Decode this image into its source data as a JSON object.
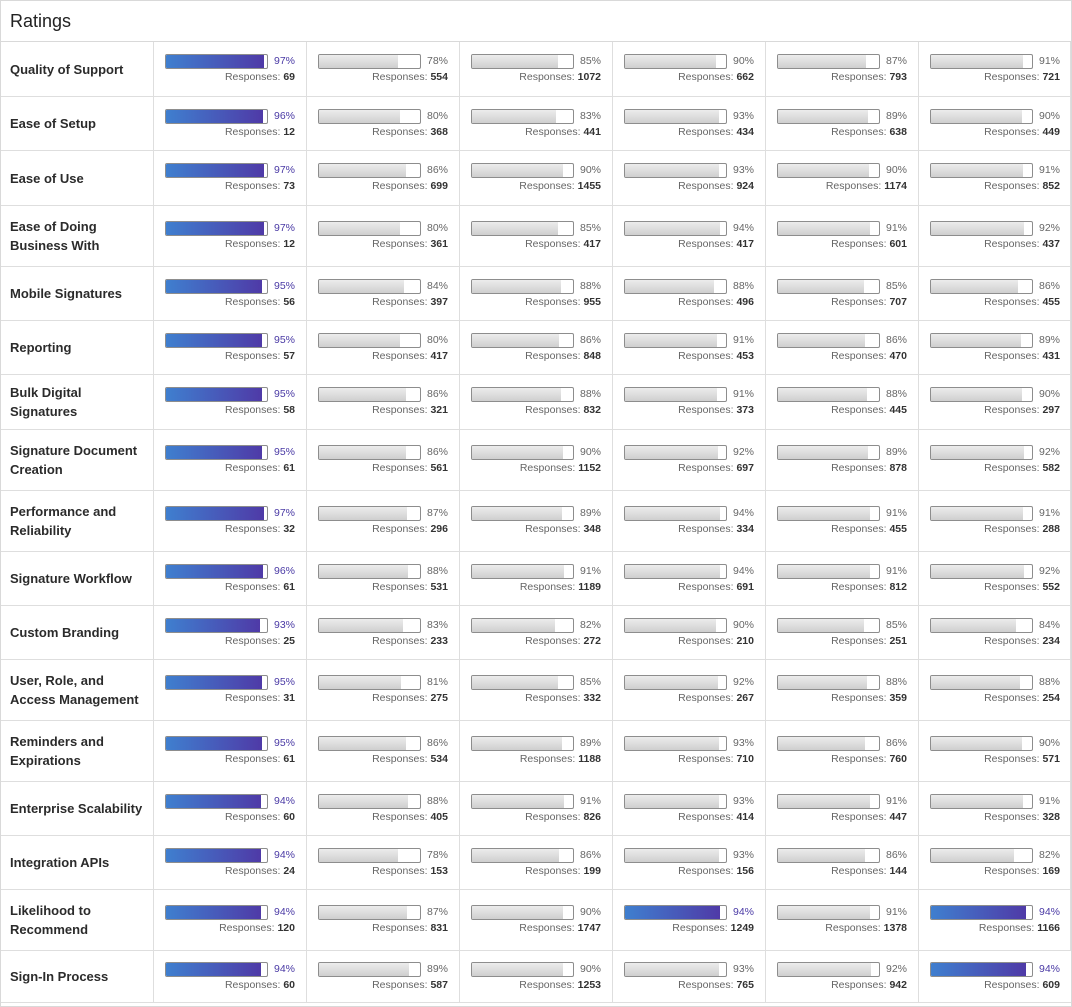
{
  "title": "Ratings",
  "responses_label": "Responses:",
  "colors": {
    "highlight_start": "#3f7fcf",
    "highlight_end": "#4f3aa7",
    "neutral_fill": "#d6d6d6"
  },
  "rows": [
    {
      "label": "Quality of Support",
      "cells": [
        {
          "pct": "97%",
          "responses": "69",
          "highlight": true
        },
        {
          "pct": "78%",
          "responses": "554"
        },
        {
          "pct": "85%",
          "responses": "1072"
        },
        {
          "pct": "90%",
          "responses": "662"
        },
        {
          "pct": "87%",
          "responses": "793"
        },
        {
          "pct": "91%",
          "responses": "721"
        }
      ]
    },
    {
      "label": "Ease of Setup",
      "cells": [
        {
          "pct": "96%",
          "responses": "12",
          "highlight": true
        },
        {
          "pct": "80%",
          "responses": "368"
        },
        {
          "pct": "83%",
          "responses": "441"
        },
        {
          "pct": "93%",
          "responses": "434"
        },
        {
          "pct": "89%",
          "responses": "638"
        },
        {
          "pct": "90%",
          "responses": "449"
        }
      ]
    },
    {
      "label": "Ease of Use",
      "cells": [
        {
          "pct": "97%",
          "responses": "73",
          "highlight": true
        },
        {
          "pct": "86%",
          "responses": "699"
        },
        {
          "pct": "90%",
          "responses": "1455"
        },
        {
          "pct": "93%",
          "responses": "924"
        },
        {
          "pct": "90%",
          "responses": "1174"
        },
        {
          "pct": "91%",
          "responses": "852"
        }
      ]
    },
    {
      "label": "Ease of Doing Business With",
      "cells": [
        {
          "pct": "97%",
          "responses": "12",
          "highlight": true
        },
        {
          "pct": "80%",
          "responses": "361"
        },
        {
          "pct": "85%",
          "responses": "417"
        },
        {
          "pct": "94%",
          "responses": "417"
        },
        {
          "pct": "91%",
          "responses": "601"
        },
        {
          "pct": "92%",
          "responses": "437"
        }
      ]
    },
    {
      "label": "Mobile Signatures",
      "cells": [
        {
          "pct": "95%",
          "responses": "56",
          "highlight": true
        },
        {
          "pct": "84%",
          "responses": "397"
        },
        {
          "pct": "88%",
          "responses": "955"
        },
        {
          "pct": "88%",
          "responses": "496"
        },
        {
          "pct": "85%",
          "responses": "707"
        },
        {
          "pct": "86%",
          "responses": "455"
        }
      ]
    },
    {
      "label": "Reporting",
      "cells": [
        {
          "pct": "95%",
          "responses": "57",
          "highlight": true
        },
        {
          "pct": "80%",
          "responses": "417"
        },
        {
          "pct": "86%",
          "responses": "848"
        },
        {
          "pct": "91%",
          "responses": "453"
        },
        {
          "pct": "86%",
          "responses": "470"
        },
        {
          "pct": "89%",
          "responses": "431"
        }
      ]
    },
    {
      "label": "Bulk Digital Signatures",
      "cells": [
        {
          "pct": "95%",
          "responses": "58",
          "highlight": true
        },
        {
          "pct": "86%",
          "responses": "321"
        },
        {
          "pct": "88%",
          "responses": "832"
        },
        {
          "pct": "91%",
          "responses": "373"
        },
        {
          "pct": "88%",
          "responses": "445"
        },
        {
          "pct": "90%",
          "responses": "297"
        }
      ]
    },
    {
      "label": "Signature Document Creation",
      "cells": [
        {
          "pct": "95%",
          "responses": "61",
          "highlight": true
        },
        {
          "pct": "86%",
          "responses": "561"
        },
        {
          "pct": "90%",
          "responses": "1152"
        },
        {
          "pct": "92%",
          "responses": "697"
        },
        {
          "pct": "89%",
          "responses": "878"
        },
        {
          "pct": "92%",
          "responses": "582"
        }
      ]
    },
    {
      "label": "Performance and Reliability",
      "cells": [
        {
          "pct": "97%",
          "responses": "32",
          "highlight": true
        },
        {
          "pct": "87%",
          "responses": "296"
        },
        {
          "pct": "89%",
          "responses": "348"
        },
        {
          "pct": "94%",
          "responses": "334"
        },
        {
          "pct": "91%",
          "responses": "455"
        },
        {
          "pct": "91%",
          "responses": "288"
        }
      ]
    },
    {
      "label": "Signature Workflow",
      "cells": [
        {
          "pct": "96%",
          "responses": "61",
          "highlight": true
        },
        {
          "pct": "88%",
          "responses": "531"
        },
        {
          "pct": "91%",
          "responses": "1189"
        },
        {
          "pct": "94%",
          "responses": "691"
        },
        {
          "pct": "91%",
          "responses": "812"
        },
        {
          "pct": "92%",
          "responses": "552"
        }
      ]
    },
    {
      "label": "Custom Branding",
      "cells": [
        {
          "pct": "93%",
          "responses": "25",
          "highlight": true
        },
        {
          "pct": "83%",
          "responses": "233"
        },
        {
          "pct": "82%",
          "responses": "272"
        },
        {
          "pct": "90%",
          "responses": "210"
        },
        {
          "pct": "85%",
          "responses": "251"
        },
        {
          "pct": "84%",
          "responses": "234"
        }
      ]
    },
    {
      "label": "User, Role, and Access Management",
      "cells": [
        {
          "pct": "95%",
          "responses": "31",
          "highlight": true
        },
        {
          "pct": "81%",
          "responses": "275"
        },
        {
          "pct": "85%",
          "responses": "332"
        },
        {
          "pct": "92%",
          "responses": "267"
        },
        {
          "pct": "88%",
          "responses": "359"
        },
        {
          "pct": "88%",
          "responses": "254"
        }
      ]
    },
    {
      "label": "Reminders and Expirations",
      "cells": [
        {
          "pct": "95%",
          "responses": "61",
          "highlight": true
        },
        {
          "pct": "86%",
          "responses": "534"
        },
        {
          "pct": "89%",
          "responses": "1188"
        },
        {
          "pct": "93%",
          "responses": "710"
        },
        {
          "pct": "86%",
          "responses": "760"
        },
        {
          "pct": "90%",
          "responses": "571"
        }
      ]
    },
    {
      "label": "Enterprise Scalability",
      "cells": [
        {
          "pct": "94%",
          "responses": "60",
          "highlight": true
        },
        {
          "pct": "88%",
          "responses": "405"
        },
        {
          "pct": "91%",
          "responses": "826"
        },
        {
          "pct": "93%",
          "responses": "414"
        },
        {
          "pct": "91%",
          "responses": "447"
        },
        {
          "pct": "91%",
          "responses": "328"
        }
      ]
    },
    {
      "label": "Integration APIs",
      "cells": [
        {
          "pct": "94%",
          "responses": "24",
          "highlight": true
        },
        {
          "pct": "78%",
          "responses": "153"
        },
        {
          "pct": "86%",
          "responses": "199"
        },
        {
          "pct": "93%",
          "responses": "156"
        },
        {
          "pct": "86%",
          "responses": "144"
        },
        {
          "pct": "82%",
          "responses": "169"
        }
      ]
    },
    {
      "label": "Likelihood to Recommend",
      "cells": [
        {
          "pct": "94%",
          "responses": "120",
          "highlight": true
        },
        {
          "pct": "87%",
          "responses": "831"
        },
        {
          "pct": "90%",
          "responses": "1747"
        },
        {
          "pct": "94%",
          "responses": "1249",
          "highlight": true
        },
        {
          "pct": "91%",
          "responses": "1378"
        },
        {
          "pct": "94%",
          "responses": "1166",
          "highlight": true
        }
      ]
    },
    {
      "label": "Sign-In Process",
      "cells": [
        {
          "pct": "94%",
          "responses": "60",
          "highlight": true
        },
        {
          "pct": "89%",
          "responses": "587"
        },
        {
          "pct": "90%",
          "responses": "1253"
        },
        {
          "pct": "93%",
          "responses": "765"
        },
        {
          "pct": "92%",
          "responses": "942"
        },
        {
          "pct": "94%",
          "responses": "609",
          "highlight": true
        }
      ]
    }
  ]
}
